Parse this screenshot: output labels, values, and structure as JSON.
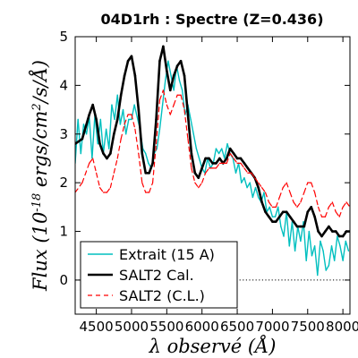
{
  "chart_data": {
    "type": "line",
    "title": "04D1rh : Spectre (Z=0.436)",
    "xlabel": "λ observé (Å)",
    "ylabel": "Flux (10^-18 ergs/cm^2/s/Å)",
    "xlim": [
      4200,
      8100
    ],
    "ylim": [
      -0.7,
      5.0
    ],
    "xticks": [
      4500,
      5000,
      5500,
      6000,
      6500,
      7000,
      7500,
      8000
    ],
    "yticks": [
      0,
      1,
      2,
      3,
      4,
      5
    ],
    "xtick_labels": [
      "4500",
      "5000",
      "5500",
      "6000",
      "6500",
      "7000",
      "7500",
      "8000"
    ],
    "ytick_labels": [
      "0",
      "1",
      "2",
      "3",
      "4",
      "5"
    ],
    "zero_line": 0,
    "grid": false,
    "legend_position": "lower left",
    "series": [
      {
        "name": "Extrait (15 A)",
        "color": "#00BFBF",
        "style": "solid",
        "x": [
          4200,
          4240,
          4280,
          4320,
          4360,
          4400,
          4440,
          4480,
          4520,
          4560,
          4600,
          4640,
          4680,
          4720,
          4760,
          4800,
          4840,
          4880,
          4920,
          4960,
          5000,
          5040,
          5080,
          5120,
          5160,
          5200,
          5240,
          5280,
          5320,
          5360,
          5400,
          5440,
          5480,
          5520,
          5560,
          5600,
          5640,
          5680,
          5720,
          5760,
          5800,
          5840,
          5880,
          5920,
          5960,
          6000,
          6040,
          6080,
          6120,
          6160,
          6200,
          6240,
          6280,
          6320,
          6360,
          6400,
          6440,
          6480,
          6520,
          6560,
          6600,
          6640,
          6680,
          6720,
          6760,
          6800,
          6840,
          6880,
          6920,
          6960,
          7000,
          7040,
          7080,
          7120,
          7160,
          7200,
          7240,
          7280,
          7320,
          7360,
          7400,
          7440,
          7480,
          7520,
          7560,
          7600,
          7640,
          7680,
          7720,
          7760,
          7800,
          7840,
          7880,
          7920,
          7960,
          8000,
          8040,
          8080
        ],
        "y": [
          2.4,
          3.3,
          2.6,
          3.2,
          3.0,
          3.35,
          2.5,
          3.4,
          2.8,
          3.3,
          2.6,
          3.1,
          2.7,
          3.6,
          3.3,
          3.8,
          3.2,
          3.5,
          3.0,
          3.3,
          3.3,
          3.6,
          3.35,
          3.1,
          2.7,
          2.6,
          2.4,
          2.3,
          2.6,
          2.7,
          3.1,
          3.6,
          4.1,
          4.5,
          4.2,
          3.9,
          4.4,
          4.1,
          3.9,
          3.4,
          3.6,
          3.3,
          3.0,
          2.7,
          2.5,
          2.3,
          2.2,
          2.5,
          2.3,
          2.4,
          2.7,
          2.6,
          2.7,
          2.5,
          2.8,
          2.6,
          2.5,
          2.2,
          2.4,
          2.0,
          2.1,
          1.9,
          2.0,
          1.7,
          1.9,
          1.7,
          1.6,
          1.8,
          1.4,
          1.5,
          1.3,
          1.3,
          1.5,
          1.1,
          0.9,
          1.4,
          0.7,
          1.2,
          0.6,
          1.1,
          0.8,
          1.2,
          0.4,
          1.0,
          0.5,
          0.7,
          0.1,
          0.8,
          0.6,
          0.2,
          0.3,
          0.7,
          0.4,
          0.9,
          0.7,
          0.4,
          0.8,
          0.6
        ]
      },
      {
        "name": "SALT2 Cal.",
        "color": "#000000",
        "style": "solid",
        "x": [
          4200,
          4300,
          4400,
          4450,
          4500,
          4550,
          4600,
          4650,
          4700,
          4750,
          4800,
          4850,
          4900,
          4950,
          5000,
          5050,
          5100,
          5150,
          5200,
          5250,
          5300,
          5350,
          5400,
          5450,
          5500,
          5550,
          5600,
          5650,
          5700,
          5750,
          5800,
          5850,
          5900,
          5950,
          6000,
          6050,
          6100,
          6150,
          6200,
          6250,
          6300,
          6350,
          6400,
          6450,
          6500,
          6550,
          6600,
          6650,
          6700,
          6750,
          6800,
          6850,
          6900,
          6950,
          7000,
          7050,
          7100,
          7150,
          7200,
          7250,
          7300,
          7350,
          7400,
          7450,
          7500,
          7550,
          7600,
          7650,
          7700,
          7750,
          7800,
          7850,
          7900,
          7950,
          8000,
          8050,
          8100
        ],
        "y": [
          2.8,
          2.9,
          3.4,
          3.6,
          3.3,
          2.8,
          2.6,
          2.5,
          2.6,
          3.0,
          3.3,
          3.8,
          4.2,
          4.5,
          4.6,
          4.2,
          3.5,
          2.6,
          2.2,
          2.2,
          2.4,
          3.3,
          4.5,
          4.8,
          4.3,
          3.9,
          4.2,
          4.4,
          4.5,
          4.2,
          3.4,
          2.6,
          2.2,
          2.1,
          2.3,
          2.5,
          2.5,
          2.4,
          2.4,
          2.5,
          2.4,
          2.5,
          2.7,
          2.6,
          2.5,
          2.5,
          2.4,
          2.3,
          2.2,
          2.1,
          1.9,
          1.6,
          1.4,
          1.3,
          1.2,
          1.2,
          1.3,
          1.4,
          1.4,
          1.3,
          1.2,
          1.1,
          1.1,
          1.1,
          1.4,
          1.5,
          1.3,
          1.0,
          0.9,
          1.0,
          1.1,
          1.0,
          1.0,
          0.9,
          0.9,
          1.0,
          1.0
        ]
      },
      {
        "name": "SALT2 (C.L.)",
        "color": "#FF0000",
        "style": "dashed",
        "x": [
          4200,
          4300,
          4400,
          4450,
          4500,
          4550,
          4600,
          4650,
          4700,
          4750,
          4800,
          4850,
          4900,
          4950,
          5000,
          5050,
          5100,
          5150,
          5200,
          5250,
          5300,
          5350,
          5400,
          5450,
          5500,
          5550,
          5600,
          5650,
          5700,
          5750,
          5800,
          5850,
          5900,
          5950,
          6000,
          6050,
          6100,
          6150,
          6200,
          6250,
          6300,
          6350,
          6400,
          6450,
          6500,
          6550,
          6600,
          6650,
          6700,
          6750,
          6800,
          6850,
          6900,
          6950,
          7000,
          7050,
          7100,
          7150,
          7200,
          7250,
          7300,
          7350,
          7400,
          7450,
          7500,
          7550,
          7600,
          7650,
          7700,
          7750,
          7800,
          7850,
          7900,
          7950,
          8000,
          8050,
          8100
        ],
        "y": [
          1.8,
          2.0,
          2.4,
          2.5,
          2.2,
          1.9,
          1.8,
          1.8,
          1.9,
          2.2,
          2.5,
          2.9,
          3.2,
          3.4,
          3.4,
          3.1,
          2.6,
          2.0,
          1.8,
          1.8,
          2.0,
          2.8,
          3.7,
          3.9,
          3.6,
          3.4,
          3.6,
          3.8,
          3.8,
          3.5,
          2.9,
          2.3,
          2.0,
          1.9,
          2.0,
          2.2,
          2.3,
          2.3,
          2.3,
          2.4,
          2.4,
          2.4,
          2.6,
          2.5,
          2.4,
          2.4,
          2.3,
          2.2,
          2.2,
          2.1,
          2.0,
          1.9,
          1.8,
          1.6,
          1.5,
          1.5,
          1.7,
          1.9,
          2.0,
          1.8,
          1.6,
          1.5,
          1.6,
          1.8,
          2.0,
          2.0,
          1.8,
          1.5,
          1.3,
          1.3,
          1.5,
          1.6,
          1.4,
          1.3,
          1.5,
          1.6,
          1.5
        ]
      }
    ]
  }
}
